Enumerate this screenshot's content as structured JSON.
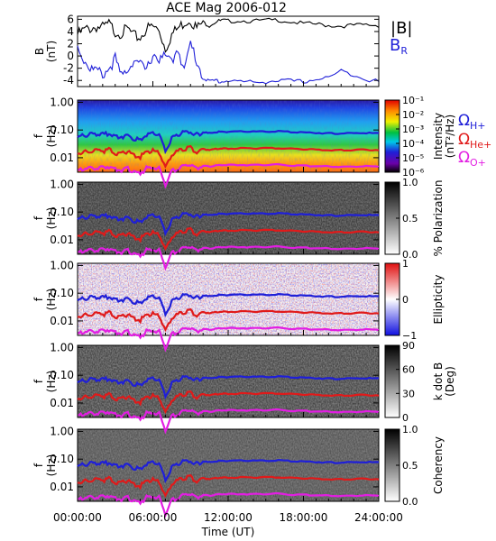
{
  "title": "ACE Mag 2006-012",
  "legend_mag": [
    {
      "label": "|B|",
      "color": "#000000"
    },
    {
      "label": "B",
      "sub": "R",
      "color": "#1f1fd8"
    }
  ],
  "freq_legend": [
    {
      "label": "Ω",
      "sub": "H+",
      "color": "#1f1fd8"
    },
    {
      "label": "Ω",
      "sub": "He+",
      "color": "#e01a1a"
    },
    {
      "label": "Ω",
      "sub": "O+",
      "color": "#e21ee2"
    }
  ],
  "chart_data": [
    {
      "type": "line",
      "panel": "magnetic field",
      "ylabel_line1": "B",
      "ylabel_line2": "(nT)",
      "ylim": [
        -5,
        6.5
      ],
      "yticks": [
        -4,
        -2,
        0,
        2,
        4,
        6
      ],
      "xlim_hours": [
        0,
        24
      ],
      "series": [
        {
          "name": "|B|",
          "color": "#000000",
          "x": [
            0,
            0.5,
            1,
            1.5,
            2,
            2.5,
            3,
            3.5,
            4,
            4.5,
            5,
            5.5,
            6,
            6.5,
            7,
            7.5,
            8,
            8.5,
            9,
            9.5,
            10,
            10.5,
            11,
            11.5,
            12,
            13,
            14,
            15,
            16,
            17,
            18,
            19,
            20,
            21,
            22,
            23,
            24
          ],
          "y": [
            3.5,
            4.2,
            4.5,
            4.8,
            4.6,
            5.2,
            4.0,
            3.8,
            4.4,
            3.2,
            3.0,
            4.5,
            4.8,
            4.2,
            1.2,
            3.5,
            4.5,
            5.5,
            6.0,
            4.5,
            5.5,
            5.0,
            5.6,
            5.8,
            5.7,
            5.8,
            5.7,
            5.8,
            5.9,
            5.6,
            5.3,
            5.2,
            5.0,
            4.9,
            5.0,
            5.1,
            5.0
          ]
        },
        {
          "name": "B",
          "sub": "R",
          "color": "#1f1fd8",
          "x": [
            0,
            0.5,
            1,
            1.5,
            2,
            2.5,
            3,
            3.5,
            4,
            4.5,
            5,
            5.5,
            6,
            6.5,
            7,
            7.5,
            8,
            8.5,
            9,
            9.5,
            10,
            10.5,
            11,
            11.5,
            12,
            13,
            14,
            15,
            16,
            17,
            18,
            19,
            20,
            21,
            22,
            23,
            24
          ],
          "y": [
            1.5,
            -0.5,
            -2.0,
            -2.5,
            -3.0,
            -2.0,
            -0.5,
            -3.5,
            -2.0,
            -0.5,
            -1.5,
            -2.5,
            0.5,
            -0.5,
            -0.2,
            -1.0,
            1.5,
            -2.5,
            2.0,
            -0.8,
            -3.5,
            -4.2,
            -4.0,
            -4.2,
            -4.0,
            -4.2,
            -4.3,
            -4.2,
            -4.0,
            -4.1,
            -4.2,
            -3.8,
            -3.5,
            -2.5,
            -3.0,
            -3.8,
            -4.2
          ]
        }
      ]
    },
    {
      "type": "heatmap",
      "panel": "intensity spectrogram",
      "ylabel_line1": "f",
      "ylabel_line2": "(Hz)",
      "yscale": "log",
      "ylim": [
        0.003,
        1.2
      ],
      "yticks": [
        1.0,
        0.1,
        0.01
      ],
      "ytick_labels": [
        "1.00",
        "0.10",
        "0.01"
      ],
      "colorbar": {
        "label_line1": "Intensity",
        "label_line2": "(nT²/Hz)",
        "scale": "log",
        "ticks": [
          "10⁻¹",
          "10⁻²",
          "10⁻³",
          "10⁻⁴",
          "10⁻⁵",
          "10⁻⁶"
        ],
        "colormap": "rainbow"
      }
    },
    {
      "type": "heatmap",
      "panel": "polarization",
      "ylabel_line1": "f",
      "ylabel_line2": "(Hz)",
      "yscale": "log",
      "yticks": [
        1.0,
        0.1,
        0.01
      ],
      "ytick_labels": [
        "1.00",
        "0.10",
        "0.01"
      ],
      "colorbar": {
        "label_line1": "% Polarization",
        "label_line2": "",
        "ticks": [
          "1.0",
          "0.5",
          "0.0"
        ],
        "colormap": "gray"
      }
    },
    {
      "type": "heatmap",
      "panel": "ellipticity",
      "ylabel_line1": "f",
      "ylabel_line2": "(Hz)",
      "yscale": "log",
      "yticks": [
        1.0,
        0.1,
        0.01
      ],
      "ytick_labels": [
        "1.00",
        "0.10",
        "0.01"
      ],
      "colorbar": {
        "label_line1": "Ellipticity",
        "label_line2": "",
        "ticks": [
          "1",
          "0",
          "−1"
        ],
        "colormap": "blue-white-red"
      }
    },
    {
      "type": "heatmap",
      "panel": "wave normal angle",
      "ylabel_line1": "f",
      "ylabel_line2": "(Hz)",
      "yscale": "log",
      "yticks": [
        1.0,
        0.1,
        0.01
      ],
      "ytick_labels": [
        "1.00",
        "0.10",
        "0.01"
      ],
      "colorbar": {
        "label_line1": "k dot B",
        "label_line2": "(Deg)",
        "ticks": [
          "90",
          "60",
          "30",
          "0"
        ],
        "colormap": "gray"
      }
    },
    {
      "type": "heatmap",
      "panel": "coherency",
      "ylabel_line1": "f",
      "ylabel_line2": "(Hz)",
      "yscale": "log",
      "yticks": [
        1.0,
        0.1,
        0.01
      ],
      "ytick_labels": [
        "1.00",
        "0.10",
        "0.01"
      ],
      "colorbar": {
        "label_line1": "Coherency",
        "label_line2": "",
        "ticks": [
          "1.0",
          "0.5",
          "0.0"
        ],
        "colormap": "gray"
      }
    }
  ],
  "gyrofrequency_lines": {
    "x_hours": [
      0,
      0.5,
      1,
      1.5,
      2,
      2.5,
      3,
      3.5,
      4,
      4.5,
      5,
      5.5,
      6,
      6.5,
      7,
      7.5,
      8,
      8.5,
      9,
      9.5,
      10,
      10.5,
      11,
      11.5,
      12,
      13,
      14,
      15,
      16,
      17,
      18,
      19,
      20,
      21,
      22,
      23,
      24
    ],
    "series": [
      {
        "name": "H+",
        "color": "#1f1fd8",
        "f": [
          0.055,
          0.064,
          0.068,
          0.072,
          0.07,
          0.078,
          0.06,
          0.058,
          0.066,
          0.048,
          0.045,
          0.068,
          0.072,
          0.064,
          0.018,
          0.053,
          0.068,
          0.083,
          0.09,
          0.068,
          0.083,
          0.076,
          0.084,
          0.087,
          0.086,
          0.088,
          0.087,
          0.088,
          0.089,
          0.085,
          0.081,
          0.079,
          0.076,
          0.075,
          0.076,
          0.078,
          0.076
        ]
      },
      {
        "name": "He+",
        "color": "#e01a1a",
        "f": [
          0.014,
          0.016,
          0.017,
          0.018,
          0.0175,
          0.0195,
          0.015,
          0.0145,
          0.0165,
          0.012,
          0.011,
          0.017,
          0.018,
          0.016,
          0.0045,
          0.013,
          0.017,
          0.021,
          0.0225,
          0.017,
          0.021,
          0.019,
          0.021,
          0.022,
          0.0215,
          0.022,
          0.0218,
          0.022,
          0.0222,
          0.0213,
          0.0203,
          0.0198,
          0.019,
          0.0188,
          0.019,
          0.0195,
          0.019
        ]
      },
      {
        "name": "O+",
        "color": "#e21ee2",
        "f": [
          0.0034,
          0.004,
          0.0042,
          0.0045,
          0.0044,
          0.0049,
          0.0037,
          0.0036,
          0.0041,
          0.003,
          0.0028,
          0.0042,
          0.0045,
          0.004,
          0.0011,
          0.0033,
          0.0042,
          0.0052,
          0.0056,
          0.0042,
          0.0052,
          0.0047,
          0.0052,
          0.0054,
          0.0054,
          0.0055,
          0.0054,
          0.0055,
          0.0056,
          0.0053,
          0.0051,
          0.005,
          0.0048,
          0.0047,
          0.0048,
          0.0049,
          0.0048
        ]
      }
    ]
  },
  "xaxis": {
    "ticks": [
      "00:00:00",
      "06:00:00",
      "12:00:00",
      "18:00:00",
      "24:00:00"
    ],
    "tick_hours": [
      0,
      6,
      12,
      18,
      24
    ],
    "label": "Time (UT)"
  }
}
